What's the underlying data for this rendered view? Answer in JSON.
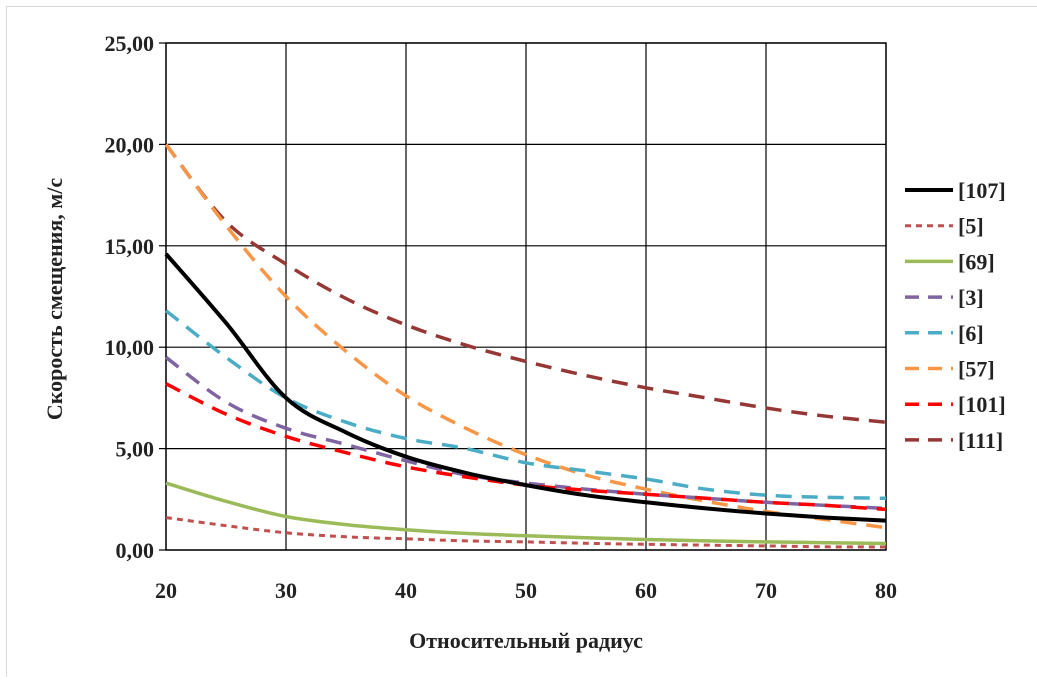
{
  "chart_data": {
    "type": "line",
    "title": "",
    "xlabel": "Относительный радиус",
    "ylabel": "Скорость смещения, м/с",
    "xlim": [
      20,
      80
    ],
    "ylim": [
      0,
      25
    ],
    "x_ticks": [
      20,
      30,
      40,
      50,
      60,
      70,
      80
    ],
    "x_tick_labels": [
      "20",
      "30",
      "40",
      "50",
      "60",
      "70",
      "80"
    ],
    "y_ticks": [
      0,
      5,
      10,
      15,
      20,
      25
    ],
    "y_tick_labels": [
      "0,00",
      "5,00",
      "10,00",
      "15,00",
      "20,00",
      "25,00"
    ],
    "grid": true,
    "legend_position": "right",
    "x": [
      20,
      25,
      30,
      35,
      40,
      45,
      50,
      55,
      60,
      65,
      70,
      75,
      80
    ],
    "series": [
      {
        "name": "[107]",
        "color": "#000000",
        "dash": "solid",
        "values": [
          14.6,
          11.2,
          7.5,
          5.8,
          4.6,
          3.8,
          3.2,
          2.7,
          2.35,
          2.05,
          1.8,
          1.6,
          1.45
        ]
      },
      {
        "name": "[5]",
        "color": "#c0504d",
        "dash": "dotted",
        "values": [
          1.6,
          1.2,
          0.85,
          0.65,
          0.55,
          0.45,
          0.4,
          0.33,
          0.28,
          0.24,
          0.2,
          0.16,
          0.15
        ]
      },
      {
        "name": "[69]",
        "color": "#9bbb59",
        "dash": "solid",
        "values": [
          3.3,
          2.4,
          1.65,
          1.25,
          1.0,
          0.82,
          0.7,
          0.6,
          0.52,
          0.45,
          0.4,
          0.36,
          0.32
        ]
      },
      {
        "name": "[3]",
        "color": "#8064a2",
        "dash": "dashed",
        "values": [
          9.5,
          7.3,
          6.0,
          5.2,
          4.4,
          3.7,
          3.3,
          3.0,
          2.75,
          2.55,
          2.35,
          2.2,
          2.05
        ]
      },
      {
        "name": "[6]",
        "color": "#4bacc6",
        "dash": "dashed",
        "values": [
          11.8,
          9.5,
          7.5,
          6.3,
          5.5,
          5.0,
          4.3,
          3.9,
          3.5,
          3.0,
          2.7,
          2.6,
          2.55
        ]
      },
      {
        "name": "[57]",
        "color": "#f79646",
        "dash": "dashed",
        "values": [
          20.0,
          16.0,
          12.5,
          9.8,
          7.6,
          6.0,
          4.7,
          3.7,
          3.0,
          2.4,
          1.9,
          1.5,
          1.1
        ]
      },
      {
        "name": "[101]",
        "color": "#ff0000",
        "dash": "dashed",
        "values": [
          8.2,
          6.7,
          5.6,
          4.8,
          4.1,
          3.6,
          3.2,
          2.95,
          2.75,
          2.55,
          2.35,
          2.2,
          2.0
        ]
      },
      {
        "name": "[111]",
        "color": "#953735",
        "dash": "dashed",
        "values": [
          20.0,
          16.2,
          14.1,
          12.4,
          11.1,
          10.1,
          9.3,
          8.6,
          8.0,
          7.5,
          7.0,
          6.6,
          6.3
        ]
      }
    ]
  }
}
